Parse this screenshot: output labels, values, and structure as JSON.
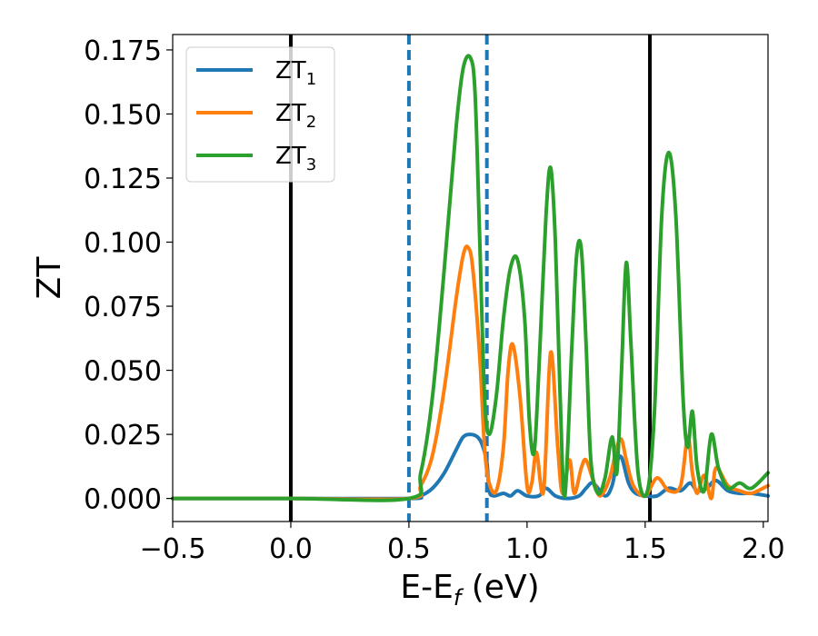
{
  "chart_data": {
    "type": "line",
    "xlabel": "E-E",
    "xlabel_sub": "f",
    "xlabel_unit": " (eV)",
    "ylabel": "ZT",
    "xlim": [
      -0.5,
      2.02
    ],
    "ylim": [
      -0.009,
      0.181
    ],
    "xticks": [
      -0.5,
      0.0,
      0.5,
      1.0,
      1.5,
      2.0
    ],
    "xtick_labels": [
      "−0.5",
      "0.0",
      "0.5",
      "1.0",
      "1.5",
      "2.0"
    ],
    "yticks": [
      0.0,
      0.025,
      0.05,
      0.075,
      0.1,
      0.125,
      0.15,
      0.175
    ],
    "ytick_labels": [
      "0.000",
      "0.025",
      "0.050",
      "0.075",
      "0.100",
      "0.125",
      "0.150",
      "0.175"
    ],
    "grid": false,
    "legend_position": "top-left",
    "vlines": [
      {
        "x": 0.0,
        "style": "solid",
        "color": "#000000"
      },
      {
        "x": 0.5,
        "style": "dashed",
        "color": "#1f77b4"
      },
      {
        "x": 0.83,
        "style": "dashed",
        "color": "#1f77b4"
      },
      {
        "x": 1.52,
        "style": "solid",
        "color": "#000000"
      }
    ],
    "series": [
      {
        "name": "ZT",
        "name_sub": "1",
        "color": "#1f77b4",
        "x": [
          -0.5,
          0.0,
          0.5,
          0.55,
          0.6,
          0.65,
          0.7,
          0.73,
          0.76,
          0.79,
          0.81,
          0.83,
          0.84,
          0.86,
          0.9,
          0.93,
          0.96,
          1.0,
          1.05,
          1.08,
          1.12,
          1.17,
          1.22,
          1.25,
          1.28,
          1.33,
          1.36,
          1.38,
          1.4,
          1.43,
          1.46,
          1.5,
          1.55,
          1.6,
          1.65,
          1.69,
          1.72,
          1.76,
          1.8,
          1.85,
          1.9,
          1.95,
          2.02
        ],
        "y": [
          0.0,
          0.0,
          0.0,
          0.001,
          0.004,
          0.01,
          0.019,
          0.024,
          0.025,
          0.024,
          0.021,
          0.014,
          0.003,
          0.001,
          0.002,
          0.001,
          0.003,
          0.001,
          0.001,
          0.004,
          0.001,
          0.0,
          0.001,
          0.004,
          0.006,
          0.001,
          0.005,
          0.014,
          0.016,
          0.006,
          0.002,
          0.001,
          0.001,
          0.004,
          0.003,
          0.006,
          0.003,
          0.004,
          0.007,
          0.003,
          0.002,
          0.002,
          0.001
        ]
      },
      {
        "name": "ZT",
        "name_sub": "2",
        "color": "#ff7f0e",
        "x": [
          -0.5,
          0.0,
          0.5,
          0.55,
          0.6,
          0.65,
          0.7,
          0.73,
          0.75,
          0.77,
          0.8,
          0.82,
          0.84,
          0.87,
          0.9,
          0.92,
          0.94,
          0.97,
          1.0,
          1.02,
          1.04,
          1.07,
          1.1,
          1.13,
          1.15,
          1.18,
          1.2,
          1.23,
          1.25,
          1.28,
          1.31,
          1.35,
          1.38,
          1.4,
          1.42,
          1.45,
          1.5,
          1.55,
          1.6,
          1.65,
          1.68,
          1.7,
          1.72,
          1.75,
          1.78,
          1.8,
          1.85,
          1.9,
          1.95,
          2.02
        ],
        "y": [
          0.0,
          0.0,
          0.0,
          0.005,
          0.017,
          0.043,
          0.078,
          0.095,
          0.098,
          0.09,
          0.055,
          0.02,
          0.006,
          0.003,
          0.02,
          0.05,
          0.06,
          0.04,
          0.005,
          0.006,
          0.018,
          0.003,
          0.057,
          0.02,
          0.002,
          0.015,
          0.002,
          0.012,
          0.015,
          0.007,
          0.001,
          0.008,
          0.02,
          0.023,
          0.015,
          0.005,
          0.001,
          0.008,
          0.003,
          0.005,
          0.024,
          0.01,
          0.002,
          0.009,
          0.0,
          0.012,
          0.005,
          0.003,
          0.002,
          0.005
        ]
      },
      {
        "name": "ZT",
        "name_sub": "3",
        "color": "#2ca02c",
        "x": [
          -0.5,
          0.0,
          0.5,
          0.55,
          0.6,
          0.65,
          0.7,
          0.73,
          0.76,
          0.78,
          0.8,
          0.82,
          0.84,
          0.87,
          0.9,
          0.93,
          0.96,
          0.99,
          1.01,
          1.03,
          1.05,
          1.08,
          1.1,
          1.12,
          1.14,
          1.16,
          1.19,
          1.21,
          1.23,
          1.25,
          1.27,
          1.3,
          1.33,
          1.36,
          1.38,
          1.4,
          1.42,
          1.44,
          1.47,
          1.51,
          1.54,
          1.57,
          1.6,
          1.63,
          1.66,
          1.68,
          1.7,
          1.72,
          1.75,
          1.78,
          1.81,
          1.85,
          1.9,
          1.95,
          2.02
        ],
        "y": [
          0.0,
          0.0,
          0.0,
          0.01,
          0.04,
          0.09,
          0.145,
          0.168,
          0.172,
          0.158,
          0.1,
          0.04,
          0.025,
          0.04,
          0.07,
          0.09,
          0.093,
          0.07,
          0.03,
          0.018,
          0.05,
          0.11,
          0.129,
          0.1,
          0.04,
          0.001,
          0.06,
          0.095,
          0.097,
          0.06,
          0.015,
          0.002,
          0.008,
          0.024,
          0.01,
          0.05,
          0.092,
          0.06,
          0.01,
          0.003,
          0.035,
          0.11,
          0.135,
          0.11,
          0.04,
          0.02,
          0.034,
          0.012,
          0.003,
          0.025,
          0.012,
          0.004,
          0.006,
          0.004,
          0.01
        ]
      }
    ]
  }
}
